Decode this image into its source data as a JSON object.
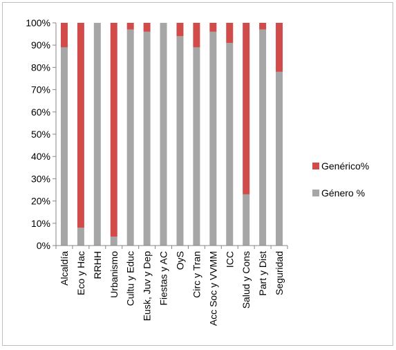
{
  "chart_data": {
    "type": "bar",
    "stacked": true,
    "percent_stacked": true,
    "categories": [
      "Alcaldía",
      "Eco y Hac",
      "RRHH",
      "Urbanismo",
      "Cultu y Educ",
      "Eusk, Juv y Dep",
      "Fiestas y AC",
      "OyS",
      "Circ y Tran",
      "Acc Soc y VVMM",
      "ICC",
      "Salud y Cons",
      "Part y Dist",
      "Seguridad"
    ],
    "series": [
      {
        "name": "Género %",
        "color": "#a6a6a6",
        "values": [
          89,
          8,
          100,
          4,
          97,
          96,
          100,
          94,
          89,
          96,
          91,
          23,
          97,
          78
        ]
      },
      {
        "name": "Genérico%",
        "color": "#d24b4b",
        "values": [
          11,
          92,
          0,
          96,
          3,
          4,
          0,
          6,
          11,
          4,
          9,
          77,
          3,
          22
        ]
      }
    ],
    "ylim": [
      0,
      100
    ],
    "y_ticks": [
      "0%",
      "10%",
      "20%",
      "30%",
      "40%",
      "50%",
      "60%",
      "70%",
      "80%",
      "90%",
      "100%"
    ],
    "grid": false,
    "legend_position": "right",
    "legend": [
      "Genérico%",
      "Género %"
    ],
    "x_tick_rotation": "vertical"
  }
}
